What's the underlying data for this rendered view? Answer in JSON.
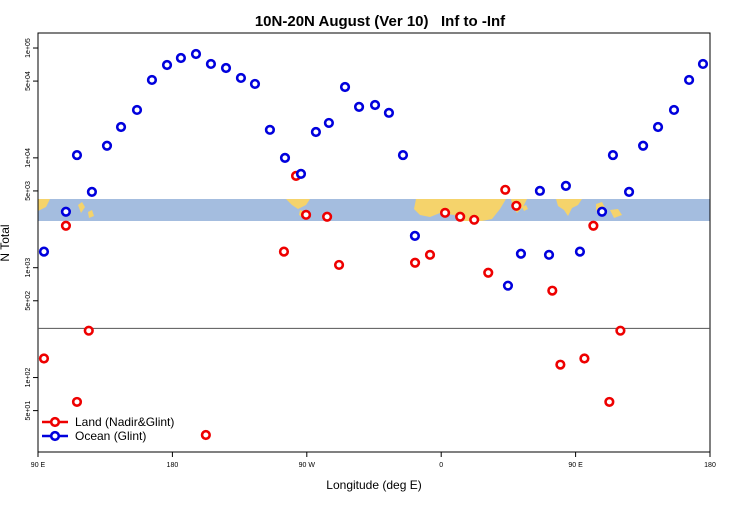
{
  "chart_data": {
    "type": "scatter",
    "title": "10N-20N August (Ver 10)   Inf to -Inf",
    "xlabel": "Longitude (deg E)",
    "ylabel": "N Total",
    "xlim": [
      90,
      540
    ],
    "xticks": [
      {
        "value": 90,
        "label": "90 E"
      },
      {
        "value": 180,
        "label": "180"
      },
      {
        "value": 270,
        "label": "90 W"
      },
      {
        "value": 360,
        "label": "0"
      },
      {
        "value": 450,
        "label": "90 E"
      },
      {
        "value": 540,
        "label": "180"
      }
    ],
    "ylim": [
      21,
      137000
    ],
    "yscale": "log",
    "yticks": [
      {
        "value": 100000,
        "label": "1e+05"
      },
      {
        "value": 50000,
        "label": "5e+04"
      },
      {
        "value": 10000,
        "label": "1e+04"
      },
      {
        "value": 5000,
        "label": "5e+03"
      },
      {
        "value": 1000,
        "label": "1e+03"
      },
      {
        "value": 500,
        "label": "5e+02"
      },
      {
        "value": 100,
        "label": "1e+02"
      },
      {
        "value": 50,
        "label": "5e+01"
      }
    ],
    "reference_line": 280,
    "legend": "bottom-left",
    "series": [
      {
        "name": "Land (Nadir&Glint)",
        "color": "#ee0000",
        "x": [
          94.0,
          108.7,
          116.1,
          124.0,
          202.4,
          254.7,
          262.8,
          269.5,
          283.6,
          291.6,
          342.5,
          352.5,
          362.6,
          372.7,
          382.1,
          391.5,
          402.9,
          410.3,
          434.4,
          439.8,
          455.9,
          461.9,
          472.6,
          480.0
        ],
        "values": [
          149,
          2410,
          60,
          267,
          30,
          1400,
          6860,
          3030,
          2910,
          1060,
          1110,
          1310,
          3160,
          2910,
          2730,
          900,
          5120,
          3660,
          618,
          131,
          149,
          2410,
          60,
          267
        ]
      },
      {
        "name": "Ocean (Glint)",
        "color": "#0000dd",
        "x": [
          94.0,
          108.7,
          116.1,
          126.1,
          136.2,
          145.6,
          156.3,
          166.3,
          176.4,
          185.7,
          195.8,
          205.8,
          215.9,
          225.9,
          235.3,
          245.3,
          255.4,
          266.1,
          276.1,
          284.8,
          295.6,
          305.0,
          315.7,
          325.0,
          334.4,
          342.4,
          404.7,
          413.4,
          426.1,
          432.2,
          443.5,
          452.9,
          467.7,
          475.0,
          485.8,
          495.2,
          505.2,
          515.9,
          526.0,
          535.3
        ],
        "values": [
          1400,
          3230,
          10600,
          4900,
          12900,
          19100,
          27300,
          51200,
          70000,
          81100,
          88200,
          71600,
          65800,
          53400,
          47100,
          18000,
          10000,
          7150,
          17200,
          20800,
          44200,
          29100,
          30300,
          25700,
          10600,
          1950,
          686,
          1340,
          5010,
          1310,
          5560,
          1400,
          3230,
          10600,
          4900,
          12900,
          19100,
          27300,
          51200,
          71600
        ]
      }
    ]
  }
}
